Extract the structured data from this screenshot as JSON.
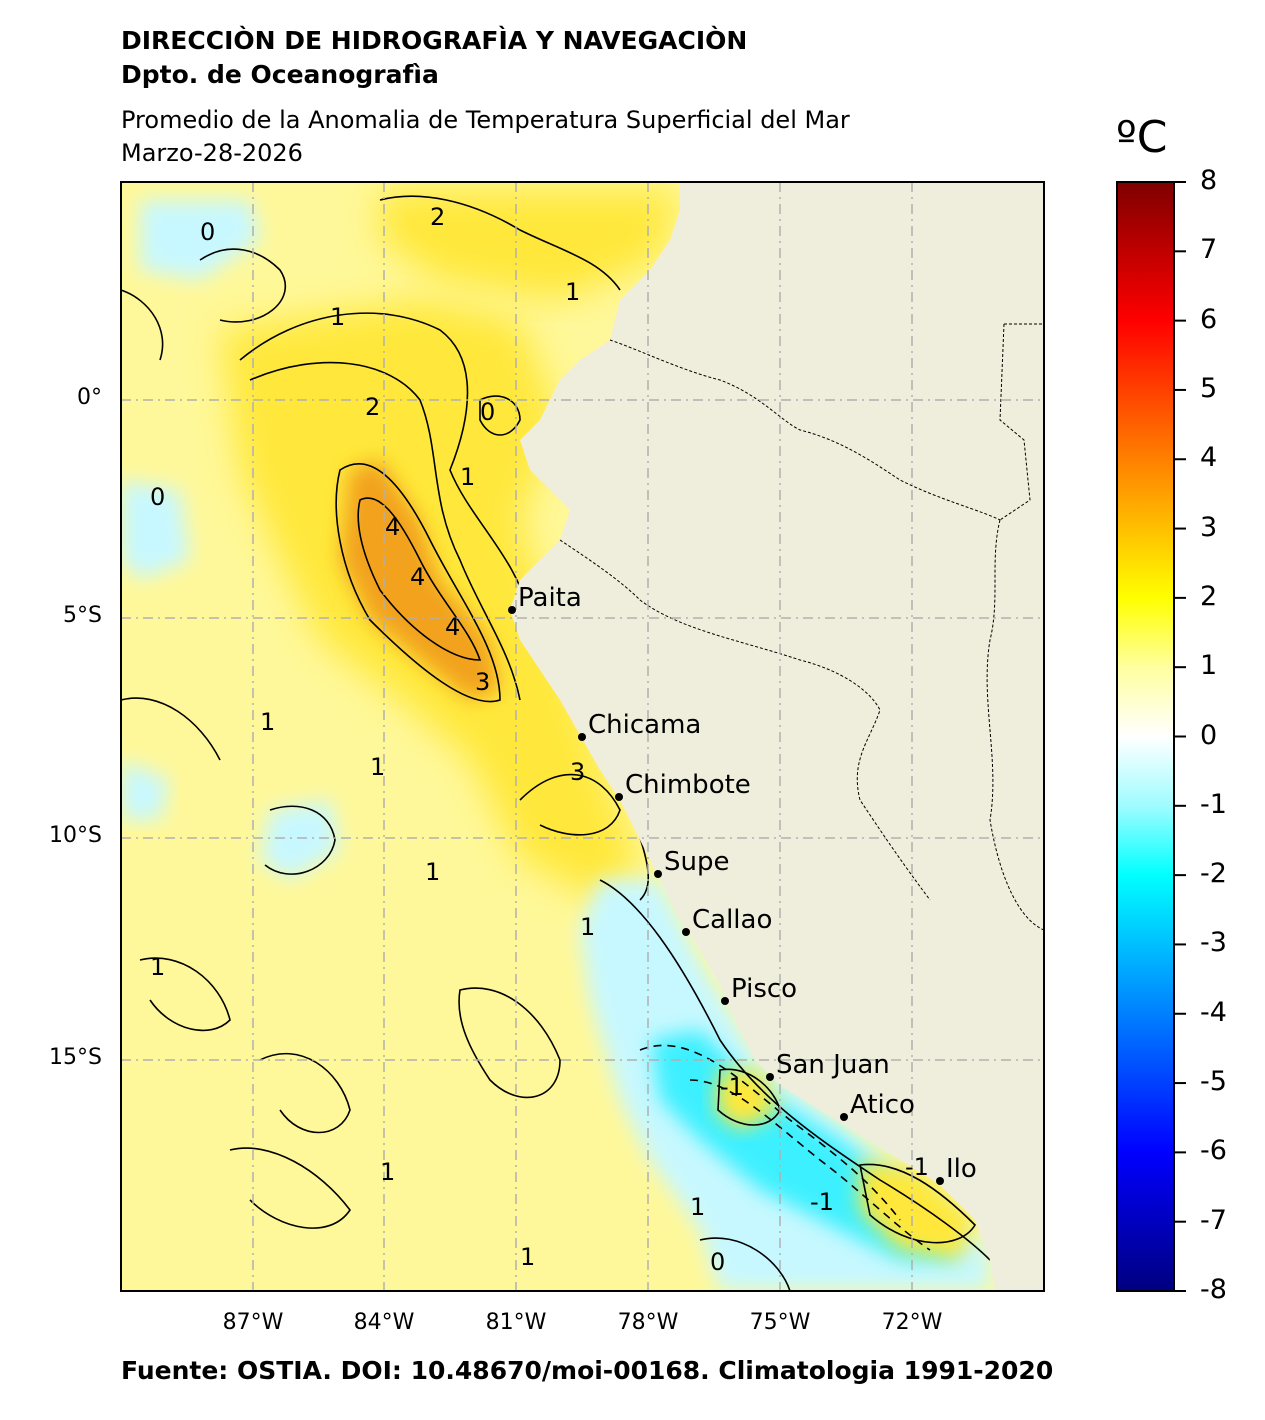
{
  "header": {
    "organization": "DIRECCIÒN DE HIDROGRAFÌA Y NAVEGACIÒN",
    "department": "Dpto. de Oceanografìa",
    "subtitle": "Promedio de la Anomalia de Temperatura Superficial del Mar",
    "date": "Marzo-28-2026"
  },
  "colorbar": {
    "unit": "ºC",
    "min": -8,
    "max": 8,
    "ticks": [
      "8",
      "7",
      "6",
      "5",
      "4",
      "3",
      "2",
      "1",
      "0",
      "-1",
      "-2",
      "-3",
      "-4",
      "-5",
      "-6",
      "-7",
      "-8"
    ],
    "stops": [
      {
        "v": -8,
        "c": "#00007f"
      },
      {
        "v": -6,
        "c": "#0000ff"
      },
      {
        "v": -4,
        "c": "#0080ff"
      },
      {
        "v": -2,
        "c": "#00ffff"
      },
      {
        "v": -1,
        "c": "#9ffcff"
      },
      {
        "v": 0,
        "c": "#ffffff"
      },
      {
        "v": 1,
        "c": "#ffff9f"
      },
      {
        "v": 2,
        "c": "#ffff00"
      },
      {
        "v": 4,
        "c": "#ff8000"
      },
      {
        "v": 6,
        "c": "#ff0000"
      },
      {
        "v": 8,
        "c": "#7f0000"
      }
    ]
  },
  "axes": {
    "lon_labels": [
      "87°W",
      "84°W",
      "81°W",
      "78°W",
      "75°W",
      "72°W"
    ],
    "lat_labels": [
      "0°",
      "5°S",
      "10°S",
      "15°S"
    ]
  },
  "places": [
    {
      "name": "Paita"
    },
    {
      "name": "Chicama"
    },
    {
      "name": "Chimbote"
    },
    {
      "name": "Supe"
    },
    {
      "name": "Callao"
    },
    {
      "name": "Pisco"
    },
    {
      "name": "San Juan"
    },
    {
      "name": "Atico"
    },
    {
      "name": "Ilo"
    }
  ],
  "contour_labels": [
    "0",
    "0",
    "0",
    "0",
    "1",
    "1",
    "1",
    "1",
    "1",
    "1",
    "1",
    "1",
    "1",
    "1",
    "1",
    "2",
    "2",
    "3",
    "3",
    "4",
    "4",
    "4",
    "-1",
    "-1",
    "-1"
  ],
  "colors": {
    "land": "#efeedc",
    "ocean_warm": "#ffe83a",
    "ocean_mild": "#fff89a",
    "ocean_cool": "#c8f8ff",
    "ocean_cold": "#3cf0ff",
    "anomaly_hot": "#f2a21a"
  },
  "footer": "Fuente: OSTIA. DOI: 10.48670/moi-00168. Climatologia 1991-2020"
}
